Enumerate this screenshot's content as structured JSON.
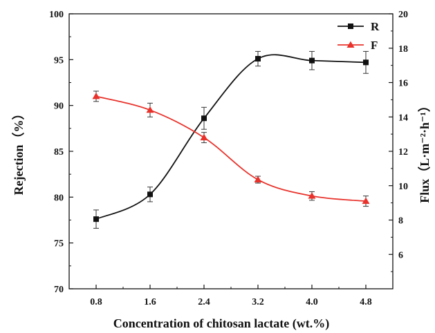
{
  "chart_data": {
    "type": "line",
    "xlabel": "Concentration of chitosan lactate (wt.%)",
    "ylabel_left": "Rejection（%）",
    "ylabel_right": "Flux（L·m⁻²·h⁻¹）",
    "x_ticks": [
      "0.8",
      "1.6",
      "2.4",
      "3.2",
      "4.0",
      "4.8"
    ],
    "y_left_ticks": [
      "70",
      "75",
      "80",
      "85",
      "90",
      "95",
      "100"
    ],
    "y_right_ticks": [
      "6",
      "8",
      "10",
      "12",
      "14",
      "16",
      "18",
      "20"
    ],
    "xlim": [
      0.4,
      5.2
    ],
    "ylim_left": [
      70,
      100
    ],
    "ylim_right": [
      4,
      20
    ],
    "legend_position": "top-right",
    "series": [
      {
        "name": "R",
        "axis": "left",
        "marker": "square",
        "color": "#111111",
        "x": [
          0.8,
          1.6,
          2.4,
          3.2,
          4.0,
          4.8
        ],
        "y": [
          77.6,
          80.3,
          88.6,
          95.1,
          94.9,
          94.7
        ],
        "err": [
          1.0,
          0.8,
          1.2,
          0.8,
          1.0,
          1.2
        ]
      },
      {
        "name": "F",
        "axis": "right",
        "marker": "triangle",
        "color": "#e8322b",
        "x": [
          0.8,
          1.6,
          2.4,
          3.2,
          4.0,
          4.8
        ],
        "y": [
          15.2,
          14.4,
          12.8,
          10.35,
          9.4,
          9.1
        ],
        "err": [
          0.3,
          0.4,
          0.3,
          0.2,
          0.25,
          0.3
        ]
      }
    ]
  }
}
